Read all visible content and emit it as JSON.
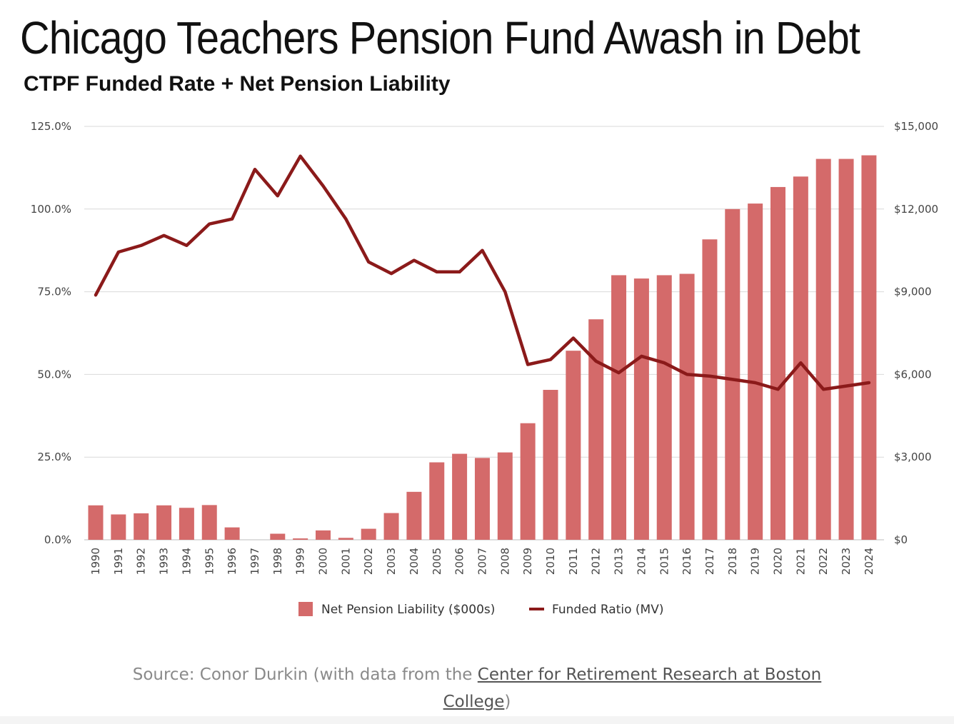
{
  "title": "Chicago Teachers Pension Fund Awash in Debt",
  "source": {
    "prefix": "Source: Conor Durkin (with data from the ",
    "link_part1": "Center for Retirement Research at Boston",
    "link_part2": "College",
    "suffix": ")"
  },
  "colors": {
    "bar": "#d46a6a",
    "line": "#8b1a1a",
    "grid": "#d9d9d9"
  },
  "chart_data": {
    "type": "bar",
    "title": "CTPF Funded Rate + Net Pension Liability",
    "grid": true,
    "legend_position": "bottom",
    "left_axis": {
      "ylim": [
        0,
        125
      ],
      "ticks": [
        "0.0%",
        "25.0%",
        "50.0%",
        "75.0%",
        "100.0%",
        "125.0%"
      ]
    },
    "right_axis": {
      "ylim": [
        0,
        15000
      ],
      "ticks": [
        "$0",
        "$3,000",
        "$6,000",
        "$9,000",
        "$12,000",
        "$15,000"
      ]
    },
    "categories": [
      "1990",
      "1991",
      "1992",
      "1993",
      "1994",
      "1995",
      "1996",
      "1997",
      "1998",
      "1999",
      "2000",
      "2001",
      "2002",
      "2003",
      "2004",
      "2005",
      "2006",
      "2007",
      "2008",
      "2009",
      "2010",
      "2011",
      "2012",
      "2013",
      "2014",
      "2015",
      "2016",
      "2017",
      "2018",
      "2019",
      "2020",
      "2021",
      "2022",
      "2023",
      "2024"
    ],
    "series": [
      {
        "name": "Net Pension Liability ($000s)",
        "type": "bar",
        "axis": "right",
        "values": [
          1250,
          920,
          960,
          1250,
          1160,
          1260,
          450,
          0,
          220,
          50,
          340,
          70,
          400,
          970,
          1740,
          2810,
          3120,
          2970,
          3170,
          4230,
          5440,
          6860,
          8000,
          9600,
          9480,
          9600,
          9650,
          10900,
          12000,
          12200,
          12800,
          13180,
          13820,
          13820,
          13950
        ]
      },
      {
        "name": "Funded Ratio (MV)",
        "type": "line",
        "axis": "left",
        "values": [
          74.0,
          87.0,
          89.0,
          92.0,
          89.0,
          95.5,
          97.0,
          112.0,
          104.0,
          116.0,
          107.0,
          97.0,
          84.0,
          80.5,
          84.5,
          81.0,
          81.0,
          87.5,
          75.0,
          53.0,
          54.5,
          61.0,
          54.0,
          50.5,
          55.5,
          53.5,
          50.0,
          49.5,
          48.5,
          47.5,
          45.5,
          53.5,
          45.5,
          46.5,
          47.5
        ]
      }
    ]
  }
}
